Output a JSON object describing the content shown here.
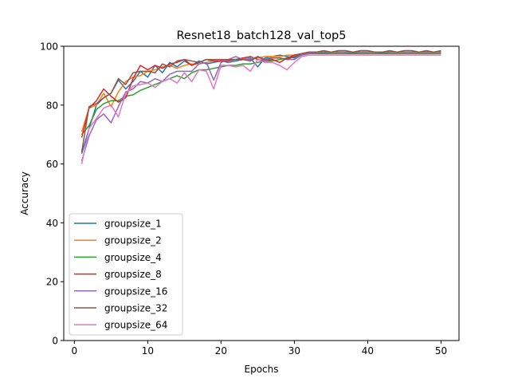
{
  "chart_data": {
    "type": "line",
    "title": "Resnet18_batch128_val_top5",
    "xlabel": "Epochs",
    "ylabel": "Accuracy",
    "xlim": [
      -1.45,
      52.45
    ],
    "ylim": [
      0,
      100
    ],
    "xticks": [
      0,
      10,
      20,
      30,
      40,
      50
    ],
    "yticks": [
      0,
      20,
      40,
      60,
      80,
      100
    ],
    "grid": false,
    "legend_position": "lower-left",
    "x": [
      1,
      2,
      3,
      4,
      5,
      6,
      7,
      8,
      9,
      10,
      11,
      12,
      13,
      14,
      15,
      16,
      17,
      18,
      19,
      20,
      21,
      22,
      23,
      24,
      25,
      26,
      27,
      28,
      29,
      30,
      31,
      32,
      33,
      34,
      35,
      36,
      37,
      38,
      39,
      40,
      41,
      42,
      43,
      44,
      45,
      46,
      47,
      48,
      49,
      50
    ],
    "series": [
      {
        "name": "groupsize_1",
        "color": "#1f77b4",
        "values": [
          63.5,
          72.0,
          80.0,
          82.5,
          84.0,
          88.5,
          85.5,
          88.0,
          91.5,
          89.5,
          93.5,
          91.0,
          94.5,
          93.0,
          95.0,
          93.5,
          95.0,
          94.0,
          94.5,
          95.0,
          94.5,
          95.0,
          95.5,
          96.0,
          93.0,
          96.0,
          96.5,
          97.0,
          96.5,
          96.0,
          97.5,
          97.8,
          98.0,
          97.8,
          98.0,
          98.0,
          98.0,
          97.8,
          98.0,
          98.0,
          98.0,
          97.8,
          98.0,
          98.0,
          98.0,
          98.0,
          98.0,
          98.0,
          98.0,
          98.0
        ]
      },
      {
        "name": "groupsize_2",
        "color": "#ff7f0e",
        "values": [
          71.0,
          79.0,
          80.0,
          84.0,
          79.5,
          84.5,
          88.0,
          89.5,
          90.0,
          91.5,
          92.0,
          93.0,
          93.5,
          92.5,
          93.5,
          94.0,
          94.0,
          94.5,
          95.0,
          95.0,
          95.5,
          95.5,
          96.0,
          95.5,
          96.0,
          96.5,
          96.5,
          96.5,
          97.0,
          97.0,
          97.5,
          98.0,
          98.0,
          98.0,
          98.0,
          98.0,
          98.0,
          98.0,
          98.0,
          98.0,
          98.0,
          98.0,
          98.0,
          98.0,
          98.0,
          98.0,
          98.0,
          98.0,
          98.0,
          98.0
        ]
      },
      {
        "name": "groupsize_4",
        "color": "#2ca02c",
        "values": [
          70.0,
          73.0,
          78.5,
          80.5,
          81.5,
          81.5,
          83.0,
          83.5,
          85.0,
          86.0,
          87.0,
          88.0,
          89.0,
          90.0,
          89.0,
          91.0,
          92.0,
          92.0,
          92.5,
          93.0,
          93.5,
          93.5,
          94.0,
          94.0,
          94.5,
          95.0,
          95.0,
          95.5,
          96.0,
          96.5,
          97.0,
          97.5,
          97.5,
          97.5,
          97.5,
          97.5,
          97.5,
          97.5,
          97.5,
          97.5,
          97.5,
          97.5,
          97.5,
          97.5,
          97.5,
          97.5,
          97.5,
          97.5,
          97.5,
          97.5
        ]
      },
      {
        "name": "groupsize_8",
        "color": "#d62728",
        "values": [
          69.0,
          79.0,
          81.5,
          85.5,
          83.0,
          81.0,
          82.5,
          89.0,
          93.5,
          92.0,
          93.5,
          92.5,
          94.0,
          94.5,
          95.5,
          93.5,
          94.5,
          95.5,
          95.0,
          95.0,
          95.0,
          95.5,
          96.0,
          96.5,
          95.5,
          95.0,
          95.5,
          94.5,
          96.0,
          97.0,
          97.5,
          98.0,
          98.0,
          98.0,
          98.0,
          98.0,
          98.0,
          98.0,
          98.0,
          98.0,
          98.0,
          98.0,
          98.0,
          98.0,
          98.0,
          98.0,
          98.0,
          98.0,
          98.0,
          98.0
        ]
      },
      {
        "name": "groupsize_16",
        "color": "#9467bd",
        "values": [
          61.0,
          69.5,
          75.0,
          77.0,
          74.0,
          79.5,
          84.5,
          85.5,
          88.0,
          87.5,
          89.0,
          88.0,
          90.5,
          91.5,
          91.5,
          91.5,
          94.0,
          94.5,
          88.5,
          94.5,
          95.5,
          96.5,
          95.5,
          95.5,
          96.5,
          95.0,
          96.0,
          96.0,
          95.5,
          95.5,
          97.0,
          97.5,
          98.0,
          98.0,
          98.0,
          98.0,
          98.0,
          98.0,
          98.0,
          98.0,
          98.0,
          98.0,
          98.0,
          98.0,
          98.0,
          98.0,
          98.0,
          98.0,
          98.0,
          98.0
        ]
      },
      {
        "name": "groupsize_32",
        "color": "#8c564b",
        "values": [
          64.0,
          79.5,
          80.5,
          82.5,
          84.0,
          89.0,
          87.0,
          91.0,
          91.5,
          91.5,
          91.0,
          94.0,
          93.0,
          95.0,
          95.5,
          95.0,
          94.5,
          95.5,
          95.5,
          95.5,
          95.5,
          95.5,
          95.5,
          95.0,
          96.5,
          95.5,
          96.0,
          96.0,
          95.5,
          96.5,
          97.5,
          98.0,
          98.0,
          98.5,
          98.0,
          98.5,
          98.5,
          98.0,
          98.5,
          98.5,
          98.0,
          98.0,
          98.5,
          98.0,
          98.5,
          98.5,
          98.0,
          98.5,
          98.0,
          98.5
        ]
      },
      {
        "name": "groupsize_64",
        "color": "#e377c2",
        "values": [
          60.0,
          72.0,
          75.5,
          79.0,
          80.0,
          76.0,
          84.0,
          86.5,
          87.0,
          87.5,
          86.0,
          88.0,
          89.0,
          87.5,
          91.0,
          88.0,
          92.0,
          91.5,
          85.5,
          93.5,
          93.5,
          93.0,
          93.5,
          91.5,
          95.5,
          94.5,
          94.5,
          93.5,
          92.0,
          94.5,
          96.5,
          97.0,
          97.0,
          97.0,
          97.0,
          97.0,
          97.0,
          97.0,
          97.0,
          97.0,
          97.0,
          97.0,
          97.0,
          97.0,
          97.0,
          97.0,
          97.0,
          97.0,
          97.0,
          97.0
        ]
      }
    ]
  }
}
